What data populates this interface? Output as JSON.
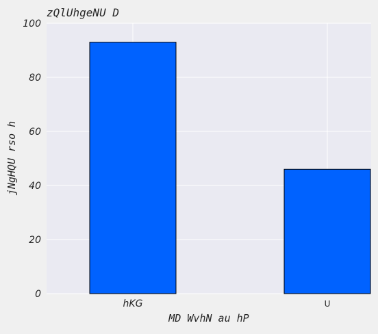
{
  "chart_data": {
    "type": "bar",
    "title": "zQlUhgeNU D",
    "xlabel": "MD WvhN au hP",
    "ylabel": "jNgHQU rso  h",
    "categories": [
      "hKG",
      "U"
    ],
    "values": [
      93,
      46
    ],
    "ylim": [
      0,
      100
    ],
    "yticks": [
      "0",
      "20",
      "40",
      "60",
      "80",
      "100"
    ],
    "grid": true,
    "bar_color": "#0062ff",
    "plot_background": "#eaeaf2",
    "grid_color": "#ffffff"
  }
}
